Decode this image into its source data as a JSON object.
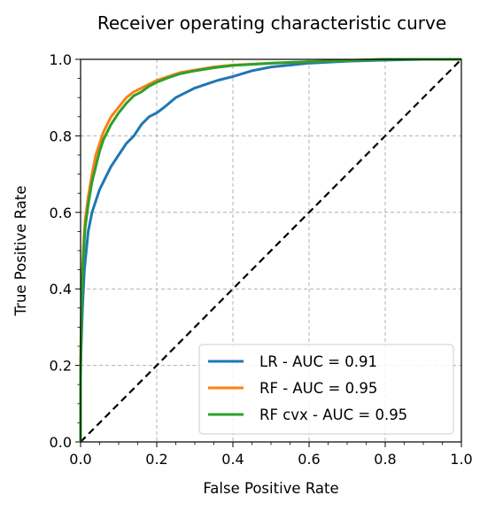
{
  "chart_data": {
    "type": "line",
    "title": "Receiver operating characteristic curve",
    "xlabel": "False Positive Rate",
    "ylabel": "True Positive Rate",
    "xlim": [
      0.0,
      1.0
    ],
    "ylim": [
      0.0,
      1.0
    ],
    "xticks": [
      "0.0",
      "0.2",
      "0.4",
      "0.6",
      "0.8",
      "1.0"
    ],
    "yticks": [
      "0.0",
      "0.2",
      "0.4",
      "0.6",
      "0.8",
      "1.0"
    ],
    "grid": true,
    "legend_position": "lower-right",
    "series": [
      {
        "name": "LR - AUC = 0.91",
        "color": "#1f77b4",
        "x": [
          0.0,
          0.0,
          0.005,
          0.01,
          0.015,
          0.02,
          0.03,
          0.04,
          0.05,
          0.06,
          0.07,
          0.08,
          0.1,
          0.12,
          0.14,
          0.16,
          0.18,
          0.2,
          0.22,
          0.25,
          0.28,
          0.3,
          0.33,
          0.36,
          0.4,
          0.45,
          0.5,
          0.55,
          0.6,
          0.7,
          0.8,
          0.9,
          1.0
        ],
        "y": [
          0.0,
          0.2,
          0.35,
          0.45,
          0.5,
          0.55,
          0.6,
          0.63,
          0.66,
          0.68,
          0.7,
          0.72,
          0.75,
          0.78,
          0.8,
          0.83,
          0.85,
          0.86,
          0.875,
          0.9,
          0.915,
          0.925,
          0.935,
          0.945,
          0.955,
          0.97,
          0.98,
          0.985,
          0.99,
          0.995,
          0.998,
          1.0,
          1.0
        ]
      },
      {
        "name": "RF - AUC = 0.95",
        "color": "#ff7f0e",
        "x": [
          0.0,
          0.0,
          0.003,
          0.007,
          0.012,
          0.02,
          0.03,
          0.04,
          0.05,
          0.06,
          0.08,
          0.1,
          0.12,
          0.14,
          0.16,
          0.18,
          0.2,
          0.23,
          0.26,
          0.3,
          0.35,
          0.4,
          0.5,
          0.6,
          0.7,
          0.8,
          0.9,
          1.0
        ],
        "y": [
          0.0,
          0.2,
          0.4,
          0.5,
          0.58,
          0.64,
          0.7,
          0.75,
          0.78,
          0.81,
          0.85,
          0.875,
          0.9,
          0.915,
          0.925,
          0.935,
          0.945,
          0.955,
          0.965,
          0.972,
          0.98,
          0.985,
          0.99,
          0.994,
          0.997,
          1.0,
          1.0,
          1.0
        ]
      },
      {
        "name": "RF cvx - AUC = 0.95",
        "color": "#2ca02c",
        "x": [
          0.0,
          0.0,
          0.003,
          0.007,
          0.012,
          0.02,
          0.03,
          0.04,
          0.05,
          0.06,
          0.08,
          0.1,
          0.12,
          0.14,
          0.16,
          0.18,
          0.2,
          0.23,
          0.26,
          0.3,
          0.35,
          0.4,
          0.5,
          0.6,
          0.7,
          0.8,
          0.9,
          1.0
        ],
        "y": [
          0.0,
          0.17,
          0.38,
          0.48,
          0.56,
          0.62,
          0.68,
          0.72,
          0.76,
          0.79,
          0.83,
          0.86,
          0.885,
          0.905,
          0.915,
          0.93,
          0.94,
          0.952,
          0.962,
          0.97,
          0.978,
          0.984,
          0.99,
          0.994,
          0.997,
          1.0,
          1.0,
          1.0
        ]
      }
    ],
    "reference_line": {
      "x": [
        0,
        1
      ],
      "y": [
        0,
        1
      ],
      "color": "#000000",
      "style": "dashed"
    }
  }
}
